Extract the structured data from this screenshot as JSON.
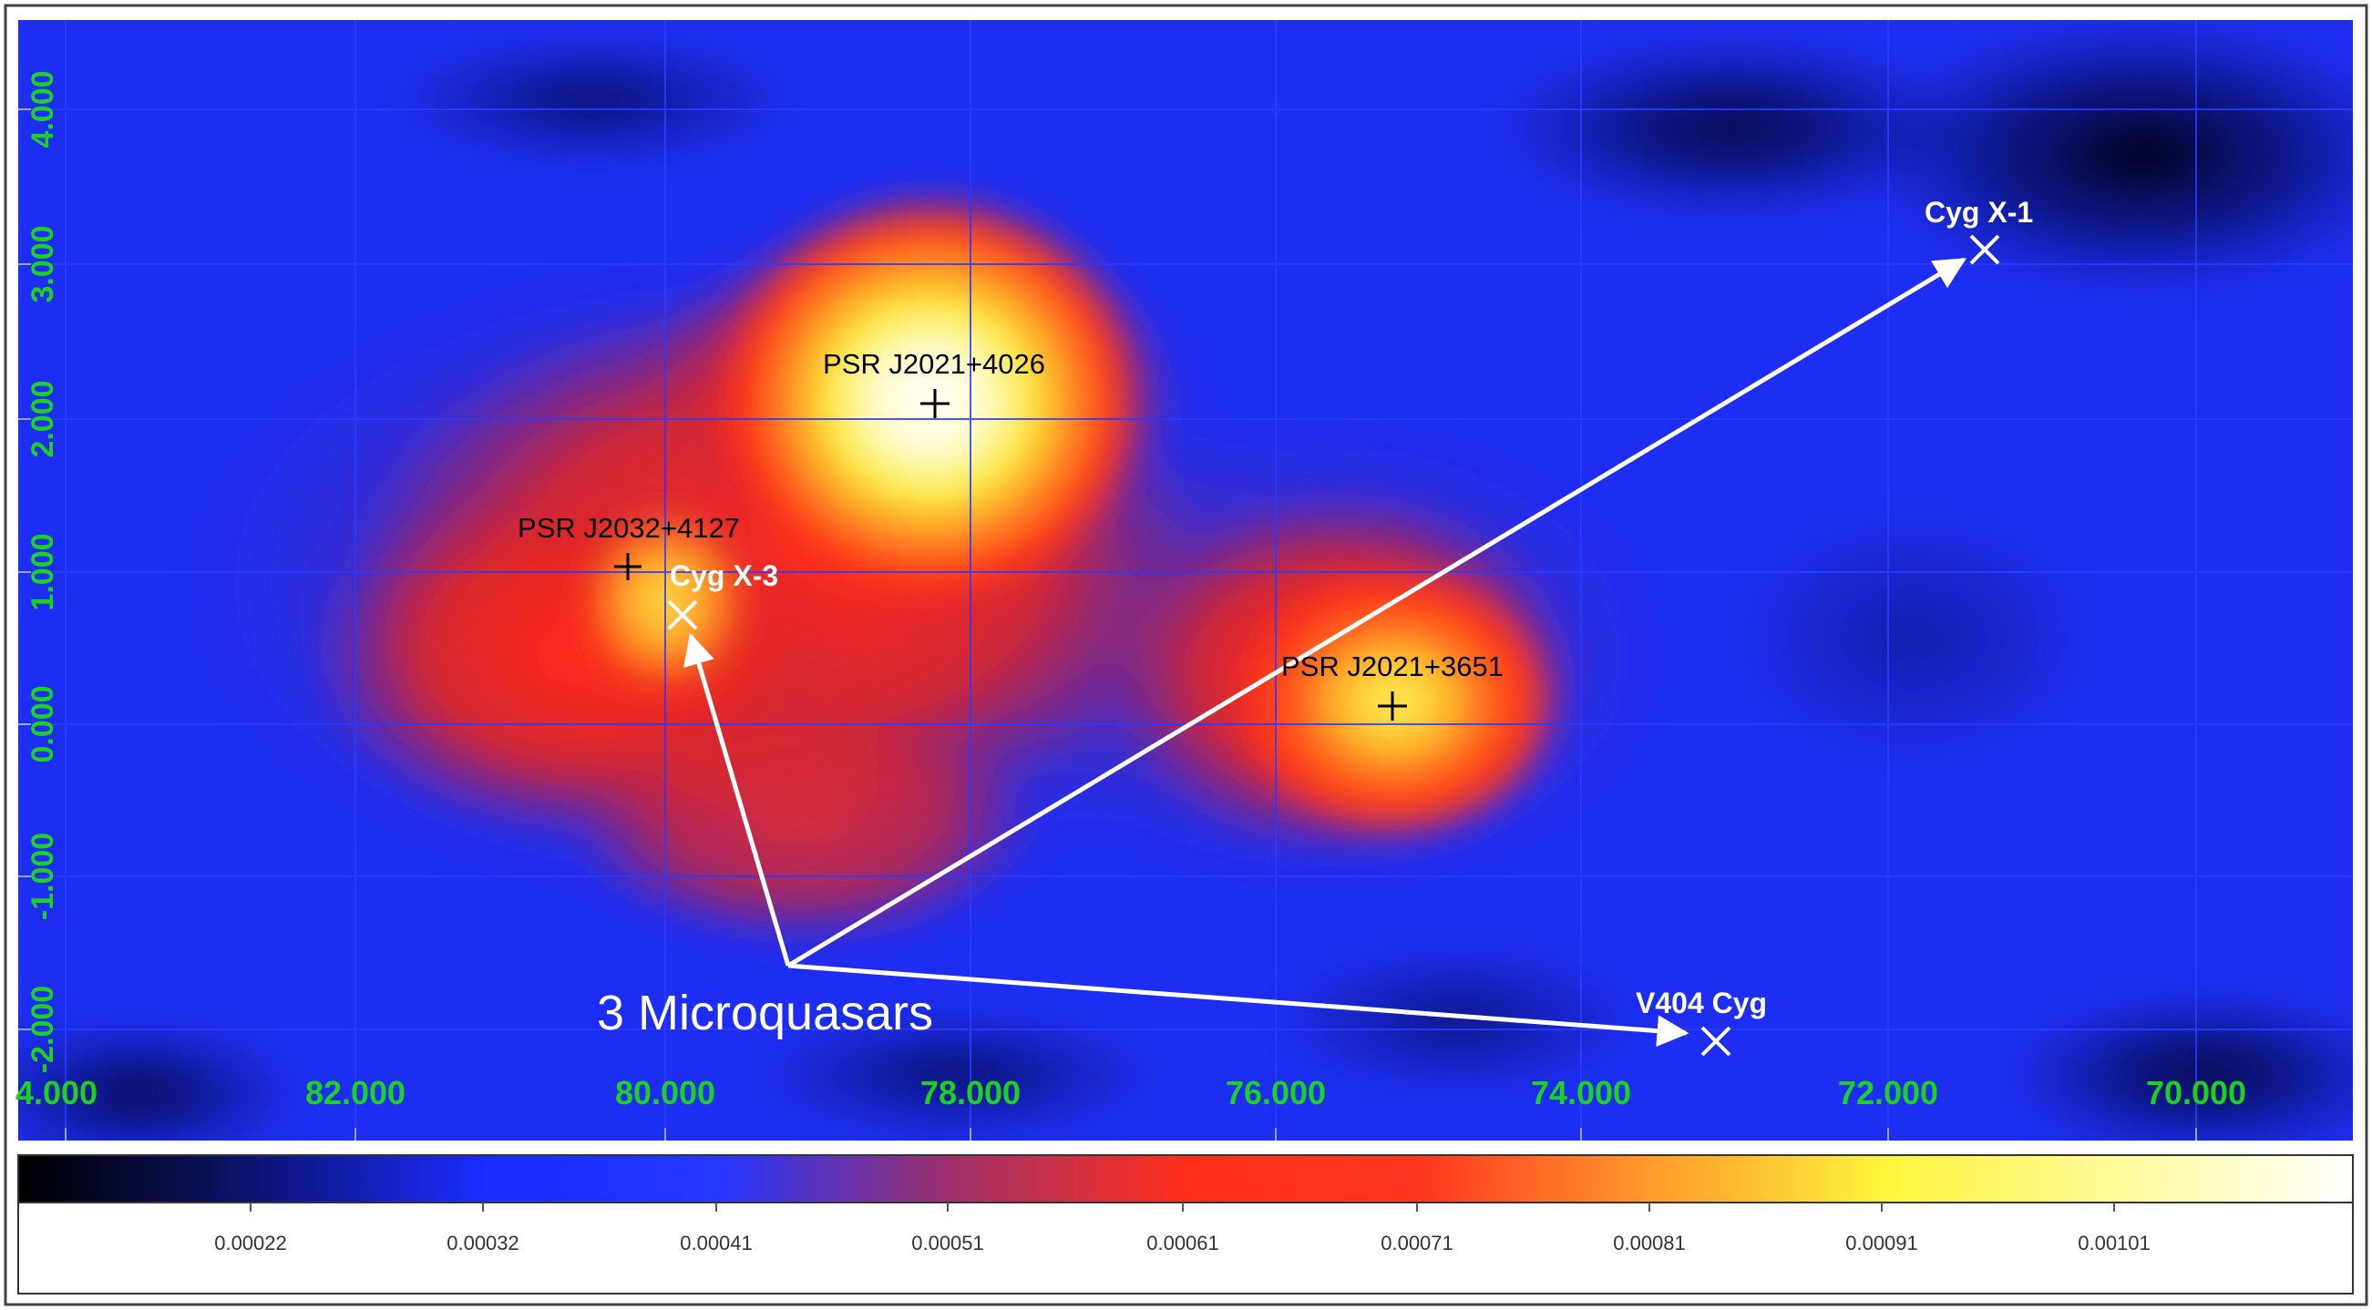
{
  "map": {
    "x_ticks": [
      "4.000",
      "82.000",
      "80.000",
      "78.000",
      "76.000",
      "74.000",
      "72.000",
      "70.000"
    ],
    "y_ticks": [
      "4.000",
      "3.000",
      "2.000",
      "1.000",
      "0.000",
      "-1.000",
      "-2.000"
    ],
    "tick_color": "#1fd11f",
    "grid_color": "#2a3bff"
  },
  "sources": {
    "psr_j2021_4026": "PSR J2021+4026",
    "psr_j2032_4127": "PSR J2032+4127",
    "psr_j2021_3651": "PSR J2021+3651",
    "cyg_x3": "Cyg X-3",
    "cyg_x1": "Cyg X-1",
    "v404_cyg": "V404 Cyg"
  },
  "annotation": {
    "label": "3 Microquasars"
  },
  "colorbar": {
    "ticks": [
      "0.00022",
      "0.00032",
      "0.00041",
      "0.00051",
      "0.00061",
      "0.00071",
      "0.00081",
      "0.00091",
      "0.00101"
    ],
    "stops": [
      "#000000",
      "#1a2cff",
      "#ff2e1a",
      "#ffff3a",
      "#ffffff"
    ]
  }
}
